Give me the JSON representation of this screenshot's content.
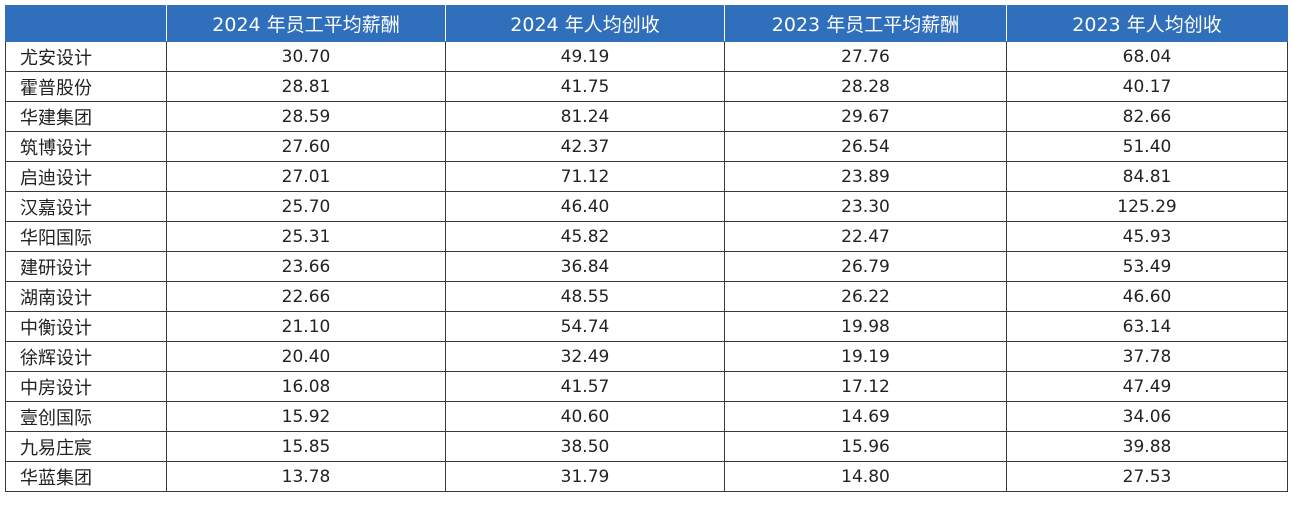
{
  "table": {
    "headers": [
      "",
      "2024 年员工平均薪酬",
      "2024 年人均创收",
      "2023 年员工平均薪酬",
      "2023 年人均创收"
    ],
    "rows": [
      {
        "name": "尤安设计",
        "values": [
          "30.70",
          "49.19",
          "27.76",
          "68.04"
        ]
      },
      {
        "name": "霍普股份",
        "values": [
          "28.81",
          "41.75",
          "28.28",
          "40.17"
        ]
      },
      {
        "name": "华建集团",
        "values": [
          "28.59",
          "81.24",
          "29.67",
          "82.66"
        ]
      },
      {
        "name": "筑博设计",
        "values": [
          "27.60",
          "42.37",
          "26.54",
          "51.40"
        ]
      },
      {
        "name": "启迪设计",
        "values": [
          "27.01",
          "71.12",
          "23.89",
          "84.81"
        ]
      },
      {
        "name": "汉嘉设计",
        "values": [
          "25.70",
          "46.40",
          "23.30",
          "125.29"
        ]
      },
      {
        "name": "华阳国际",
        "values": [
          "25.31",
          "45.82",
          "22.47",
          "45.93"
        ]
      },
      {
        "name": "建研设计",
        "values": [
          "23.66",
          "36.84",
          "26.79",
          "53.49"
        ]
      },
      {
        "name": "湖南设计",
        "values": [
          "22.66",
          "48.55",
          "26.22",
          "46.60"
        ]
      },
      {
        "name": "中衡设计",
        "values": [
          "21.10",
          "54.74",
          "19.98",
          "63.14"
        ]
      },
      {
        "name": "徐辉设计",
        "values": [
          "20.40",
          "32.49",
          "19.19",
          "37.78"
        ]
      },
      {
        "name": "中房设计",
        "values": [
          "16.08",
          "41.57",
          "17.12",
          "47.49"
        ]
      },
      {
        "name": "壹创国际",
        "values": [
          "15.92",
          "40.60",
          "14.69",
          "34.06"
        ]
      },
      {
        "name": "九易庄宸",
        "values": [
          "15.85",
          "38.50",
          "15.96",
          "39.88"
        ]
      },
      {
        "name": "华蓝集团",
        "values": [
          "13.78",
          "31.79",
          "14.80",
          "27.53"
        ]
      }
    ]
  },
  "colors": {
    "header_bg": "#2f6fbb",
    "header_text": "#ffffff",
    "border": "#3a3a3a"
  }
}
